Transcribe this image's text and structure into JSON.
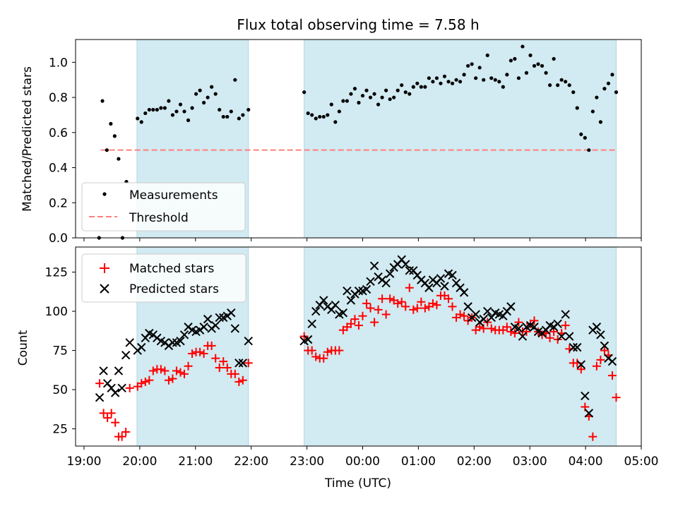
{
  "figure_title": "Flux total observing time = 7.58 h",
  "colors": {
    "shading": "#add8e6",
    "measurement": "#000000",
    "threshold": "#ff7f7f",
    "matched": "#ff0000",
    "predicted": "#000000"
  },
  "chart_data": [
    {
      "type": "scatter",
      "ylabel": "Matched/Predicted stars",
      "ylim": [
        0,
        1.13
      ],
      "yticks": [
        "0.0",
        "0.2",
        "0.4",
        "0.6",
        "0.8",
        "1.0"
      ],
      "grid": false,
      "legend": {
        "placement": "lower-left",
        "entries": [
          "Measurements",
          "Threshold"
        ]
      },
      "observing_windows_hours_after_19": [
        [
          0.95,
          2.95
        ],
        [
          3.95,
          9.55
        ]
      ],
      "threshold": {
        "value": 0.5,
        "x_range_hours_after_19": [
          0.3,
          9.55
        ]
      },
      "series": [
        {
          "name": "Measurements",
          "x_hours_after_19": [
            0.27,
            0.33,
            0.41,
            0.48,
            0.55,
            0.62,
            0.69,
            0.76,
            0.96,
            1.03,
            1.1,
            1.17,
            1.24,
            1.31,
            1.38,
            1.45,
            1.52,
            1.59,
            1.66,
            1.73,
            1.8,
            1.87,
            1.94,
            2.01,
            2.08,
            2.15,
            2.22,
            2.29,
            2.36,
            2.43,
            2.5,
            2.57,
            2.64,
            2.71,
            2.78,
            2.85,
            2.95,
            3.95,
            4.02,
            4.09,
            4.16,
            4.23,
            4.3,
            4.37,
            4.44,
            4.51,
            4.58,
            4.65,
            4.72,
            4.79,
            4.86,
            4.93,
            5.0,
            5.07,
            5.14,
            5.21,
            5.28,
            5.35,
            5.42,
            5.49,
            5.56,
            5.63,
            5.7,
            5.77,
            5.84,
            5.91,
            5.98,
            6.05,
            6.12,
            6.19,
            6.26,
            6.33,
            6.4,
            6.47,
            6.54,
            6.61,
            6.68,
            6.75,
            6.82,
            6.89,
            6.96,
            7.03,
            7.1,
            7.17,
            7.24,
            7.31,
            7.38,
            7.45,
            7.52,
            7.59,
            7.66,
            7.73,
            7.8,
            7.87,
            7.94,
            8.01,
            8.08,
            8.15,
            8.22,
            8.29,
            8.36,
            8.43,
            8.5,
            8.57,
            8.64,
            8.71,
            8.78,
            8.85,
            8.92,
            8.99,
            9.06,
            9.13,
            9.2,
            9.27,
            9.34,
            9.41,
            9.48,
            9.55
          ],
          "values": [
            0.0,
            0.78,
            0.5,
            0.65,
            0.58,
            0.45,
            0.0,
            0.32,
            0.68,
            0.66,
            0.71,
            0.73,
            0.73,
            0.73,
            0.74,
            0.74,
            0.78,
            0.7,
            0.72,
            0.76,
            0.72,
            0.67,
            0.74,
            0.82,
            0.84,
            0.77,
            0.8,
            0.86,
            0.82,
            0.73,
            0.69,
            0.69,
            0.72,
            0.9,
            0.68,
            0.7,
            0.73,
            0.83,
            0.71,
            0.7,
            0.68,
            0.69,
            0.69,
            0.7,
            0.76,
            0.66,
            0.72,
            0.78,
            0.78,
            0.82,
            0.85,
            0.77,
            0.81,
            0.84,
            0.8,
            0.82,
            0.76,
            0.8,
            0.84,
            0.79,
            0.8,
            0.84,
            0.87,
            0.83,
            0.82,
            0.86,
            0.88,
            0.86,
            0.86,
            0.91,
            0.89,
            0.91,
            0.88,
            0.92,
            0.89,
            0.88,
            0.9,
            0.89,
            0.93,
            0.98,
            0.99,
            0.91,
            0.97,
            0.9,
            1.04,
            0.91,
            0.9,
            0.89,
            0.86,
            0.93,
            1.01,
            1.02,
            0.91,
            1.09,
            0.94,
            1.04,
            0.98,
            0.99,
            0.98,
            0.94,
            0.87,
            1.02,
            0.87,
            0.9,
            0.89,
            0.87,
            0.83,
            0.74,
            0.59,
            0.57,
            0.5,
            0.72,
            0.8,
            0.66,
            0.85,
            0.88,
            0.93,
            0.83
          ]
        }
      ]
    },
    {
      "type": "scatter",
      "xlabel": "Time (UTC)",
      "ylabel": "Count",
      "xlim_hours_after_19": [
        -0.15,
        10.0
      ],
      "xticks": [
        "19:00",
        "20:00",
        "21:00",
        "22:00",
        "23:00",
        "00:00",
        "01:00",
        "02:00",
        "03:00",
        "04:00",
        "05:00"
      ],
      "ylim": [
        14,
        141
      ],
      "yticks": [
        "25",
        "50",
        "75",
        "100",
        "125"
      ],
      "grid": false,
      "legend": {
        "placement": "upper-left",
        "entries": [
          "Matched stars",
          "Predicted stars"
        ]
      },
      "observing_windows_hours_after_19": [
        [
          0.95,
          2.95
        ],
        [
          3.95,
          9.55
        ]
      ],
      "series": [
        {
          "name": "Matched stars",
          "marker": "+",
          "x_hours_after_19": [
            0.28,
            0.35,
            0.42,
            0.49,
            0.56,
            0.62,
            0.68,
            0.75,
            0.82,
            0.96,
            1.03,
            1.1,
            1.17,
            1.24,
            1.31,
            1.38,
            1.45,
            1.52,
            1.59,
            1.66,
            1.73,
            1.8,
            1.87,
            1.94,
            2.01,
            2.08,
            2.15,
            2.22,
            2.29,
            2.36,
            2.43,
            2.5,
            2.57,
            2.64,
            2.71,
            2.78,
            2.85,
            2.95,
            3.95,
            4.02,
            4.09,
            4.16,
            4.23,
            4.3,
            4.37,
            4.44,
            4.51,
            4.58,
            4.65,
            4.72,
            4.79,
            4.86,
            4.93,
            5.0,
            5.07,
            5.14,
            5.21,
            5.28,
            5.35,
            5.42,
            5.49,
            5.56,
            5.63,
            5.7,
            5.77,
            5.84,
            5.91,
            5.98,
            6.05,
            6.12,
            6.19,
            6.26,
            6.33,
            6.4,
            6.47,
            6.54,
            6.61,
            6.68,
            6.75,
            6.82,
            6.89,
            6.96,
            7.03,
            7.1,
            7.17,
            7.24,
            7.31,
            7.38,
            7.45,
            7.52,
            7.59,
            7.66,
            7.73,
            7.8,
            7.87,
            7.94,
            8.01,
            8.08,
            8.15,
            8.22,
            8.29,
            8.36,
            8.43,
            8.5,
            8.57,
            8.64,
            8.71,
            8.78,
            8.85,
            8.92,
            8.99,
            9.06,
            9.13,
            9.2,
            9.27,
            9.34,
            9.41,
            9.48,
            9.55
          ],
          "values": [
            54,
            35,
            32,
            35,
            29,
            20,
            20,
            23,
            51,
            52,
            54,
            55,
            56,
            62,
            63,
            63,
            62,
            56,
            57,
            62,
            61,
            60,
            65,
            73,
            74,
            74,
            73,
            78,
            78,
            70,
            64,
            68,
            64,
            60,
            60,
            55,
            56,
            67,
            84,
            75,
            75,
            71,
            70,
            70,
            74,
            75,
            75,
            75,
            88,
            90,
            92,
            95,
            91,
            97,
            105,
            102,
            93,
            101,
            108,
            98,
            108,
            107,
            105,
            106,
            103,
            115,
            101,
            102,
            106,
            102,
            103,
            105,
            104,
            110,
            110,
            108,
            103,
            96,
            98,
            97,
            94,
            96,
            88,
            90,
            89,
            93,
            89,
            88,
            88,
            88,
            90,
            87,
            86,
            93,
            87,
            87,
            92,
            94,
            87,
            85,
            86,
            83,
            87,
            82,
            86,
            91,
            76,
            67,
            67,
            63,
            39,
            33,
            20,
            65,
            69,
            75,
            72,
            59,
            45
          ],
          "note_count": "118 points"
        },
        {
          "name": "Predicted stars",
          "marker": "x",
          "x_hours_after_19": [
            0.28,
            0.35,
            0.42,
            0.49,
            0.56,
            0.62,
            0.68,
            0.75,
            0.82,
            0.96,
            1.03,
            1.1,
            1.17,
            1.24,
            1.31,
            1.38,
            1.45,
            1.52,
            1.59,
            1.66,
            1.73,
            1.8,
            1.87,
            1.94,
            2.01,
            2.08,
            2.15,
            2.22,
            2.29,
            2.36,
            2.43,
            2.5,
            2.57,
            2.64,
            2.71,
            2.78,
            2.85,
            2.95,
            3.95,
            4.02,
            4.09,
            4.16,
            4.23,
            4.3,
            4.37,
            4.44,
            4.51,
            4.58,
            4.65,
            4.72,
            4.79,
            4.86,
            4.93,
            5.0,
            5.07,
            5.14,
            5.21,
            5.28,
            5.35,
            5.42,
            5.49,
            5.56,
            5.63,
            5.7,
            5.77,
            5.84,
            5.91,
            5.98,
            6.05,
            6.12,
            6.19,
            6.26,
            6.33,
            6.4,
            6.47,
            6.54,
            6.61,
            6.68,
            6.75,
            6.82,
            6.89,
            6.96,
            7.03,
            7.1,
            7.17,
            7.24,
            7.31,
            7.38,
            7.45,
            7.52,
            7.59,
            7.66,
            7.73,
            7.8,
            7.87,
            7.94,
            8.01,
            8.08,
            8.15,
            8.22,
            8.29,
            8.36,
            8.43,
            8.5,
            8.57,
            8.64,
            8.71,
            8.78,
            8.85,
            8.92,
            8.99,
            9.06,
            9.13,
            9.2,
            9.27,
            9.34,
            9.41,
            9.48,
            9.55
          ],
          "values": [
            45,
            62,
            54,
            51,
            48,
            62,
            51,
            72,
            80,
            75,
            77,
            83,
            86,
            85,
            83,
            81,
            80,
            78,
            80,
            80,
            81,
            85,
            90,
            88,
            87,
            88,
            90,
            95,
            89,
            91,
            96,
            96,
            97,
            99,
            89,
            67,
            67,
            81,
            81,
            82,
            92,
            100,
            104,
            107,
            103,
            101,
            104,
            98,
            99,
            113,
            107,
            111,
            113,
            113,
            114,
            119,
            129,
            122,
            120,
            118,
            124,
            128,
            130,
            133,
            130,
            126,
            126,
            123,
            120,
            118,
            115,
            120,
            118,
            121,
            116,
            124,
            123,
            118,
            115,
            112,
            103,
            96,
            98,
            93,
            95,
            100,
            96,
            99,
            98,
            97,
            100,
            103,
            90,
            89,
            84,
            90,
            91,
            90,
            87,
            86,
            88,
            91,
            90,
            92,
            84,
            98,
            84,
            77,
            77,
            66,
            46,
            35,
            88,
            90,
            85,
            78,
            70,
            68
          ],
          "note_count": "118 points"
        }
      ]
    }
  ]
}
